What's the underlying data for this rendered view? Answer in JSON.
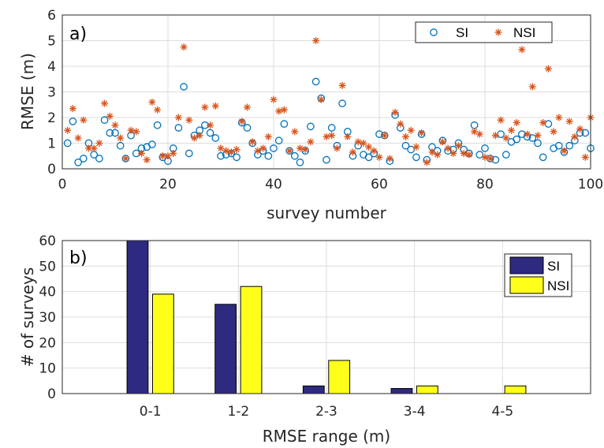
{
  "chart_data": [
    {
      "type": "scatter",
      "panel_label": "a)",
      "xlabel": "survey number",
      "ylabel": "RMSE (m)",
      "xlim": [
        0,
        100
      ],
      "ylim": [
        0,
        6
      ],
      "xticks": [
        "0",
        "20",
        "40",
        "60",
        "80",
        "100"
      ],
      "yticks": [
        "0",
        "1",
        "2",
        "3",
        "4",
        "5",
        "6"
      ],
      "grid": true,
      "legend_position": "top-right",
      "series": [
        {
          "name": "SI",
          "marker": "circle",
          "color": "#0072BD",
          "x": [
            1,
            2,
            3,
            4,
            5,
            6,
            7,
            8,
            9,
            10,
            11,
            12,
            13,
            14,
            15,
            16,
            17,
            18,
            19,
            20,
            21,
            22,
            23,
            24,
            25,
            26,
            27,
            28,
            29,
            30,
            31,
            32,
            33,
            34,
            35,
            36,
            37,
            38,
            39,
            40,
            41,
            42,
            43,
            44,
            45,
            46,
            47,
            48,
            49,
            50,
            51,
            52,
            53,
            54,
            55,
            56,
            57,
            58,
            59,
            60,
            61,
            62,
            63,
            64,
            65,
            66,
            67,
            68,
            69,
            70,
            71,
            72,
            73,
            74,
            75,
            76,
            77,
            78,
            79,
            80,
            81,
            82,
            83,
            84,
            85,
            86,
            87,
            88,
            89,
            90,
            91,
            92,
            93,
            94,
            95,
            96,
            97,
            98,
            99,
            100
          ],
          "y": [
            1.0,
            1.85,
            0.25,
            0.4,
            1.0,
            0.55,
            0.4,
            1.9,
            1.4,
            1.4,
            0.9,
            0.4,
            1.3,
            0.6,
            0.8,
            0.85,
            0.95,
            1.7,
            0.45,
            0.3,
            0.8,
            1.6,
            3.2,
            0.6,
            1.3,
            1.5,
            1.7,
            1.4,
            1.2,
            0.5,
            0.55,
            0.6,
            0.45,
            1.8,
            1.6,
            1.0,
            0.55,
            0.7,
            0.5,
            0.8,
            1.1,
            1.75,
            0.7,
            0.5,
            0.25,
            0.7,
            1.65,
            3.4,
            2.75,
            0.35,
            1.6,
            0.9,
            2.55,
            1.45,
            0.5,
            0.9,
            0.55,
            0.45,
            0.6,
            1.35,
            1.3,
            0.3,
            2.1,
            1.6,
            0.9,
            0.75,
            0.45,
            1.35,
            0.35,
            0.85,
            0.7,
            1.1,
            0.7,
            0.75,
            1.0,
            0.75,
            0.6,
            1.7,
            0.55,
            0.8,
            0.4,
            0.35,
            1.35,
            0.55,
            1.05,
            1.15,
            1.35,
            1.25,
            1.2,
            1.0,
            0.45,
            1.75,
            0.8,
            0.9,
            0.65,
            0.9,
            1.1,
            1.4,
            1.4,
            0.8
          ]
        },
        {
          "name": "NSI",
          "marker": "asterisk",
          "color": "#D95319",
          "x": [
            1,
            2,
            3,
            4,
            5,
            6,
            7,
            8,
            9,
            10,
            11,
            12,
            13,
            14,
            15,
            16,
            17,
            18,
            19,
            20,
            21,
            22,
            23,
            24,
            25,
            26,
            27,
            28,
            29,
            30,
            31,
            32,
            33,
            34,
            35,
            36,
            37,
            38,
            39,
            40,
            41,
            42,
            43,
            44,
            45,
            46,
            47,
            48,
            49,
            50,
            51,
            52,
            53,
            54,
            55,
            56,
            57,
            58,
            59,
            60,
            61,
            62,
            63,
            64,
            65,
            66,
            67,
            68,
            69,
            70,
            71,
            72,
            73,
            74,
            75,
            76,
            77,
            78,
            79,
            80,
            81,
            82,
            83,
            84,
            85,
            86,
            87,
            88,
            89,
            90,
            91,
            92,
            93,
            94,
            95,
            96,
            97,
            98,
            99,
            100
          ],
          "y": [
            1.5,
            2.35,
            1.2,
            1.9,
            0.8,
            0.8,
            1.0,
            2.55,
            2.05,
            1.7,
            1.2,
            0.4,
            1.5,
            1.45,
            0.6,
            0.35,
            2.6,
            2.3,
            0.5,
            0.5,
            0.6,
            2.0,
            4.75,
            1.9,
            1.2,
            1.3,
            2.4,
            1.7,
            2.45,
            0.8,
            0.7,
            0.65,
            0.75,
            1.85,
            2.4,
            1.05,
            0.7,
            0.8,
            1.25,
            2.7,
            2.25,
            2.3,
            0.7,
            1.45,
            0.8,
            0.75,
            1.05,
            5.0,
            2.7,
            1.25,
            1.3,
            0.8,
            3.25,
            1.25,
            0.65,
            1.05,
            1.0,
            0.85,
            0.7,
            0.45,
            1.3,
            0.4,
            2.2,
            1.75,
            1.25,
            1.5,
            0.85,
            1.4,
            0.25,
            0.65,
            0.55,
            1.05,
            0.8,
            0.6,
            0.9,
            0.6,
            0.55,
            1.45,
            1.35,
            0.45,
            0.4,
            1.3,
            1.9,
            1.2,
            1.5,
            1.8,
            4.65,
            1.35,
            3.2,
            1.3,
            1.8,
            3.9,
            1.45,
            2.0,
            0.7,
            1.85,
            1.25,
            1.55,
            0.45,
            2.0
          ]
        }
      ]
    },
    {
      "type": "bar",
      "panel_label": "b)",
      "xlabel": "RMSE range (m)",
      "ylabel": "# of surveys",
      "ylim": [
        0,
        60
      ],
      "yticks": [
        "0",
        "10",
        "20",
        "30",
        "40",
        "50",
        "60"
      ],
      "grid": true,
      "legend_position": "top-right",
      "categories": [
        "0-1",
        "1-2",
        "2-3",
        "3-4",
        "4-5"
      ],
      "series": [
        {
          "name": "SI",
          "color": "#2E2A7F",
          "values": [
            60,
            35,
            3,
            2,
            0
          ]
        },
        {
          "name": "NSI",
          "color": "#FFFF1A",
          "values": [
            39,
            42,
            13,
            3,
            3
          ]
        }
      ]
    }
  ]
}
